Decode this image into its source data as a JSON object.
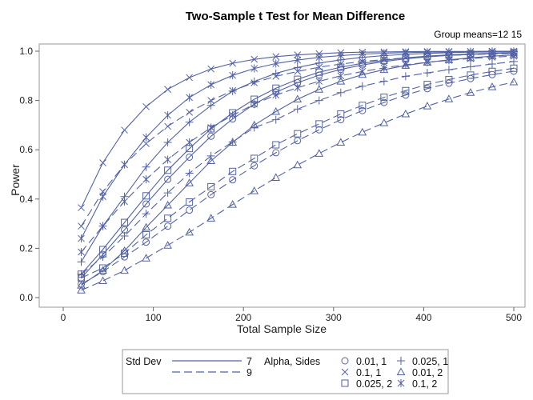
{
  "chart_data": {
    "type": "line",
    "title": "Two-Sample t Test for Mean Difference",
    "subtitle": "Group means=12 15",
    "xlabel": "Total Sample Size",
    "ylabel": "Power",
    "xlim": [
      0,
      500
    ],
    "ylim": [
      0,
      1.0
    ],
    "xticks": [
      "0",
      "100",
      "200",
      "300",
      "400",
      "500"
    ],
    "yticks": [
      "0.0",
      "0.2",
      "0.4",
      "0.6",
      "0.8",
      "1.0"
    ],
    "x": [
      20,
      44,
      68,
      92,
      116,
      140,
      164,
      188,
      212,
      236,
      260,
      284,
      308,
      332,
      356,
      380,
      404,
      428,
      452,
      476,
      500
    ],
    "grid": false,
    "legend": {
      "position": "bottom",
      "std_dev_title": "Std Dev",
      "std_dev_items": [
        {
          "label": "7",
          "dash": "solid"
        },
        {
          "label": "9",
          "dash": "dashed"
        }
      ],
      "alpha_title": "Alpha, Sides",
      "alpha_items": [
        {
          "label": "0.01, 1",
          "marker": "circle"
        },
        {
          "label": "0.025, 1",
          "marker": "plus"
        },
        {
          "label": "0.1, 1",
          "marker": "x"
        },
        {
          "label": "0.01, 2",
          "marker": "triangle"
        },
        {
          "label": "0.025, 2",
          "marker": "square"
        },
        {
          "label": "0.1, 2",
          "marker": "star"
        }
      ]
    },
    "series": [
      {
        "name": "SD 7, alpha 0.1, 1-sided",
        "sd": 7,
        "alpha": 0.1,
        "sides": 1,
        "marker": "x",
        "dash": "solid",
        "values": [
          0.365,
          0.547,
          0.68,
          0.775,
          0.845,
          0.893,
          0.928,
          0.951,
          0.967,
          0.978,
          0.985,
          0.99,
          0.994,
          0.996,
          0.997,
          0.998,
          0.999,
          0.999,
          0.999,
          1.0,
          1.0
        ]
      },
      {
        "name": "SD 7, alpha 0.1, 2-sided",
        "sd": 7,
        "alpha": 0.1,
        "sides": 2,
        "marker": "star",
        "dash": "solid",
        "values": [
          0.24,
          0.41,
          0.54,
          0.65,
          0.74,
          0.812,
          0.864,
          0.902,
          0.93,
          0.95,
          0.964,
          0.975,
          0.982,
          0.988,
          0.992,
          0.994,
          0.996,
          0.997,
          0.998,
          0.999,
          0.999
        ]
      },
      {
        "name": "SD 7, alpha 0.025, 1-sided",
        "sd": 7,
        "alpha": 0.025,
        "sides": 1,
        "marker": "plus",
        "dash": "solid",
        "values": [
          0.145,
          0.29,
          0.41,
          0.53,
          0.63,
          0.712,
          0.78,
          0.838,
          0.877,
          0.91,
          0.934,
          0.952,
          0.965,
          0.975,
          0.982,
          0.987,
          0.991,
          0.994,
          0.996,
          0.997,
          0.998
        ]
      },
      {
        "name": "SD 7, alpha 0.025, 2-sided",
        "sd": 7,
        "alpha": 0.025,
        "sides": 2,
        "marker": "square",
        "dash": "solid",
        "values": [
          0.095,
          0.195,
          0.305,
          0.413,
          0.517,
          0.605,
          0.685,
          0.75,
          0.805,
          0.85,
          0.886,
          0.915,
          0.935,
          0.951,
          0.963,
          0.973,
          0.98,
          0.985,
          0.989,
          0.992,
          0.994
        ]
      },
      {
        "name": "SD 7, alpha 0.01, 1-sided",
        "sd": 7,
        "alpha": 0.01,
        "sides": 1,
        "marker": "circle",
        "dash": "solid",
        "values": [
          0.08,
          0.175,
          0.275,
          0.38,
          0.48,
          0.57,
          0.655,
          0.725,
          0.785,
          0.833,
          0.872,
          0.903,
          0.926,
          0.944,
          0.958,
          0.969,
          0.977,
          0.983,
          0.987,
          0.99,
          0.993
        ]
      },
      {
        "name": "SD 7, alpha 0.01, 2-sided",
        "sd": 7,
        "alpha": 0.01,
        "sides": 2,
        "marker": "triangle",
        "dash": "solid",
        "values": [
          0.05,
          0.11,
          0.19,
          0.285,
          0.375,
          0.465,
          0.555,
          0.63,
          0.7,
          0.755,
          0.805,
          0.845,
          0.878,
          0.905,
          0.925,
          0.942,
          0.955,
          0.965,
          0.973,
          0.98,
          0.985
        ]
      },
      {
        "name": "SD 9, alpha 0.1, 1-sided",
        "sd": 9,
        "alpha": 0.1,
        "sides": 1,
        "marker": "x",
        "dash": "dashed",
        "values": [
          0.29,
          0.43,
          0.54,
          0.625,
          0.695,
          0.752,
          0.8,
          0.84,
          0.872,
          0.898,
          0.918,
          0.935,
          0.948,
          0.958,
          0.966,
          0.973,
          0.978,
          0.983,
          0.986,
          0.989,
          0.991
        ]
      },
      {
        "name": "SD 9, alpha 0.1, 2-sided",
        "sd": 9,
        "alpha": 0.1,
        "sides": 2,
        "marker": "star",
        "dash": "dashed",
        "values": [
          0.185,
          0.29,
          0.39,
          0.48,
          0.56,
          0.63,
          0.69,
          0.74,
          0.785,
          0.822,
          0.852,
          0.878,
          0.9,
          0.918,
          0.932,
          0.945,
          0.955,
          0.963,
          0.97,
          0.976,
          0.98
        ]
      },
      {
        "name": "SD 9, alpha 0.025, 1-sided",
        "sd": 9,
        "alpha": 0.025,
        "sides": 1,
        "marker": "plus",
        "dash": "dashed",
        "values": [
          0.095,
          0.165,
          0.25,
          0.34,
          0.425,
          0.505,
          0.575,
          0.632,
          0.69,
          0.722,
          0.765,
          0.8,
          0.832,
          0.858,
          0.878,
          0.898,
          0.912,
          0.925,
          0.937,
          0.948,
          0.958
        ]
      },
      {
        "name": "SD 9, alpha 0.025, 2-sided",
        "sd": 9,
        "alpha": 0.025,
        "sides": 2,
        "marker": "square",
        "dash": "dashed",
        "values": [
          0.08,
          0.12,
          0.18,
          0.255,
          0.322,
          0.388,
          0.45,
          0.512,
          0.565,
          0.62,
          0.665,
          0.705,
          0.745,
          0.78,
          0.813,
          0.84,
          0.865,
          0.885,
          0.903,
          0.918,
          0.931
        ]
      },
      {
        "name": "SD 9, alpha 0.01, 1-sided",
        "sd": 9,
        "alpha": 0.01,
        "sides": 1,
        "marker": "circle",
        "dash": "dashed",
        "values": [
          0.055,
          0.105,
          0.165,
          0.225,
          0.29,
          0.355,
          0.418,
          0.478,
          0.535,
          0.588,
          0.637,
          0.681,
          0.722,
          0.759,
          0.792,
          0.822,
          0.848,
          0.87,
          0.889,
          0.905,
          0.919
        ]
      },
      {
        "name": "SD 9, alpha 0.01, 2-sided",
        "sd": 9,
        "alpha": 0.01,
        "sides": 2,
        "marker": "triangle",
        "dash": "dashed",
        "values": [
          0.03,
          0.068,
          0.11,
          0.16,
          0.212,
          0.265,
          0.322,
          0.378,
          0.433,
          0.487,
          0.538,
          0.585,
          0.63,
          0.671,
          0.709,
          0.745,
          0.777,
          0.806,
          0.832,
          0.855,
          0.875
        ]
      }
    ],
    "colors": {
      "series": "#5262a4",
      "axis": "#666666",
      "frame": "#9a9a9a"
    }
  }
}
